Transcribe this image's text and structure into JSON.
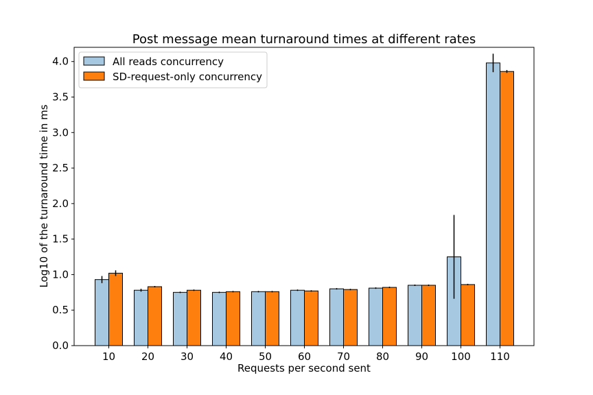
{
  "chart_data": {
    "type": "bar",
    "title": "Post message mean turnaround times at different rates",
    "xlabel": "Requests per second sent",
    "ylabel": "Log10 of the turnaround time in ms",
    "categories": [
      "10",
      "20",
      "30",
      "40",
      "50",
      "60",
      "70",
      "80",
      "90",
      "100",
      "110"
    ],
    "ylim": [
      0,
      4.2
    ],
    "yticks": [
      "0.0",
      "0.5",
      "1.0",
      "1.5",
      "2.0",
      "2.5",
      "3.0",
      "3.5",
      "4.0"
    ],
    "grid": false,
    "legend_position": "upper-left",
    "series": [
      {
        "name": "All reads concurrency",
        "color": "#a6c8e0",
        "values": [
          0.93,
          0.78,
          0.75,
          0.75,
          0.76,
          0.78,
          0.8,
          0.81,
          0.85,
          1.25,
          3.98
        ],
        "errors": [
          0.05,
          0.02,
          0.01,
          0.01,
          0.01,
          0.01,
          0.01,
          0.01,
          0.01,
          0.59,
          0.13
        ]
      },
      {
        "name": "SD-request-only concurrency",
        "color": "#ff7f0e",
        "values": [
          1.02,
          0.83,
          0.78,
          0.76,
          0.76,
          0.77,
          0.79,
          0.82,
          0.85,
          0.86,
          3.86
        ],
        "errors": [
          0.04,
          0.01,
          0.01,
          0.01,
          0.01,
          0.01,
          0.01,
          0.01,
          0.01,
          0.01,
          0.02
        ]
      }
    ]
  }
}
